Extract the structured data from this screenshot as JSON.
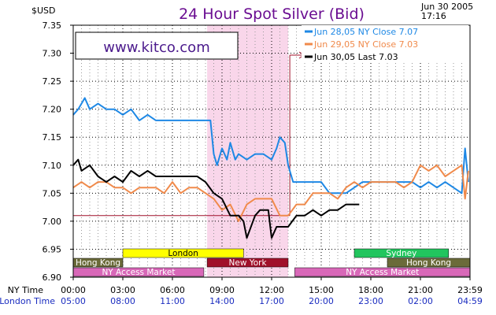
{
  "chart_data": {
    "type": "line",
    "title": "24 Hour Spot Silver (Bid)",
    "ylabel": "$USD",
    "date_line1": "Jun 30 2005",
    "date_line2": "17:16",
    "watermark": "www.kitco.com",
    "ylim": [
      6.9,
      7.35
    ],
    "yticks": [
      "7.35",
      "7.30",
      "7.25",
      "7.20",
      "7.15",
      "7.10",
      "7.05",
      "7.00",
      "6.95",
      "6.90"
    ],
    "xlim": [
      0,
      24
    ],
    "ny_time_label": "NY Time",
    "london_time_label": "London Time",
    "ny_ticks": [
      "00:00",
      "03:00",
      "06:00",
      "09:00",
      "12:00",
      "15:00",
      "18:00",
      "21:00",
      "23:59"
    ],
    "london_ticks": [
      "05:00",
      "08:00",
      "11:00",
      "14:00",
      "17:00",
      "20:00",
      "23:00",
      "02:00",
      "04:59"
    ],
    "grid": true,
    "legend_position": "top-right",
    "shaded_session_ny": [
      8.1,
      13.0
    ],
    "reference_line": 7.01,
    "series": [
      {
        "name": "Jun 28,05",
        "legend_suffix": "NY Close 7.07",
        "color": "#1e88e5",
        "x": [
          0,
          0.3,
          0.5,
          0.7,
          1.0,
          1.5,
          2.0,
          2.5,
          3.0,
          3.5,
          4.0,
          4.5,
          5.0,
          5.5,
          6.0,
          6.5,
          7.0,
          7.5,
          8.0,
          8.3,
          8.5,
          8.7,
          9.0,
          9.3,
          9.5,
          9.8,
          10.0,
          10.5,
          11.0,
          11.5,
          12.0,
          12.3,
          12.5,
          12.8,
          13.0,
          13.3,
          14.0,
          15.0,
          15.5,
          16.0,
          16.5,
          17.0,
          17.5,
          18.0,
          18.5,
          19.0,
          19.5,
          20.0,
          20.5,
          21.0,
          21.5,
          22.0,
          22.5,
          23.0,
          23.5,
          23.7,
          23.9
        ],
        "y": [
          7.19,
          7.2,
          7.21,
          7.22,
          7.2,
          7.21,
          7.2,
          7.2,
          7.19,
          7.2,
          7.18,
          7.19,
          7.18,
          7.18,
          7.18,
          7.18,
          7.18,
          7.18,
          7.18,
          7.18,
          7.12,
          7.1,
          7.13,
          7.11,
          7.14,
          7.11,
          7.12,
          7.11,
          7.12,
          7.12,
          7.11,
          7.13,
          7.15,
          7.14,
          7.1,
          7.07,
          7.07,
          7.07,
          7.05,
          7.05,
          7.05,
          7.06,
          7.07,
          7.07,
          7.07,
          7.07,
          7.07,
          7.07,
          7.07,
          7.06,
          7.07,
          7.06,
          7.07,
          7.06,
          7.05,
          7.13,
          7.07
        ]
      },
      {
        "name": "Jun 29,05",
        "legend_suffix": "NY Close 7.03",
        "color": "#f08a4b",
        "x": [
          0,
          0.5,
          1.0,
          1.5,
          2.0,
          2.5,
          3.0,
          3.5,
          4.0,
          4.5,
          5.0,
          5.5,
          6.0,
          6.5,
          7.0,
          7.5,
          8.0,
          8.5,
          9.0,
          9.5,
          10.0,
          10.5,
          11.0,
          11.5,
          12.0,
          12.5,
          13.0,
          13.5,
          14.0,
          14.5,
          15.0,
          15.5,
          16.0,
          16.5,
          17.0,
          17.5,
          18.0,
          18.5,
          19.0,
          19.5,
          20.0,
          20.5,
          21.0,
          21.5,
          22.0,
          22.5,
          23.0,
          23.5,
          23.7,
          23.9
        ],
        "y": [
          7.06,
          7.07,
          7.06,
          7.07,
          7.07,
          7.06,
          7.06,
          7.05,
          7.06,
          7.06,
          7.06,
          7.05,
          7.07,
          7.05,
          7.06,
          7.06,
          7.05,
          7.04,
          7.02,
          7.03,
          7.0,
          7.03,
          7.04,
          7.04,
          7.04,
          7.01,
          7.01,
          7.03,
          7.03,
          7.05,
          7.05,
          7.05,
          7.04,
          7.06,
          7.07,
          7.06,
          7.07,
          7.07,
          7.07,
          7.07,
          7.06,
          7.07,
          7.1,
          7.09,
          7.1,
          7.08,
          7.09,
          7.1,
          7.04,
          7.09
        ]
      },
      {
        "name": "Jun 30,05",
        "legend_suffix": "Last 7.03",
        "color": "#000000",
        "x": [
          0,
          0.3,
          0.5,
          1.0,
          1.5,
          2.0,
          2.5,
          3.0,
          3.5,
          4.0,
          4.5,
          5.0,
          5.5,
          6.0,
          6.5,
          7.0,
          7.5,
          8.0,
          8.5,
          9.0,
          9.5,
          10.0,
          10.3,
          10.5,
          11.0,
          11.3,
          11.5,
          11.8,
          12.0,
          12.3,
          12.5,
          13.0,
          13.5,
          14.0,
          14.5,
          15.0,
          15.5,
          16.0,
          16.5,
          17.0,
          17.3
        ],
        "y": [
          7.1,
          7.11,
          7.09,
          7.1,
          7.08,
          7.07,
          7.08,
          7.07,
          7.09,
          7.08,
          7.09,
          7.08,
          7.08,
          7.08,
          7.08,
          7.08,
          7.08,
          7.07,
          7.05,
          7.04,
          7.01,
          7.01,
          7.0,
          6.97,
          7.01,
          7.02,
          7.02,
          7.02,
          6.97,
          6.99,
          6.99,
          6.99,
          7.01,
          7.01,
          7.02,
          7.01,
          7.02,
          7.02,
          7.03,
          7.03,
          7.03
        ]
      }
    ],
    "sessions": [
      {
        "label": "London",
        "color": "#ffff00",
        "text_color": "#000000",
        "row": 0,
        "start": 3,
        "end": 10.3
      },
      {
        "label": "Sydney",
        "color": "#22c55e",
        "text_color": "#ffffff",
        "row": 0,
        "start": 17.0,
        "end": 22.7
      },
      {
        "label": "Hong Kong",
        "color": "#6b6b3a",
        "text_color": "#ffffff",
        "row": 1,
        "start": 0,
        "end": 3.0
      },
      {
        "label": "New York",
        "color": "#a0102a",
        "text_color": "#ffffff",
        "row": 1,
        "start": 8.1,
        "end": 13.0
      },
      {
        "label": "Hong Kong",
        "color": "#6b6b3a",
        "text_color": "#ffffff",
        "row": 1,
        "start": 19.0,
        "end": 24
      },
      {
        "label": "NY Access Market",
        "color": "#d868b8",
        "text_color": "#ffffff",
        "row": 2,
        "start": 0,
        "end": 7.9
      },
      {
        "label": "NY Access Market",
        "color": "#d868b8",
        "text_color": "#ffffff",
        "row": 2,
        "start": 13.4,
        "end": 24
      }
    ]
  }
}
